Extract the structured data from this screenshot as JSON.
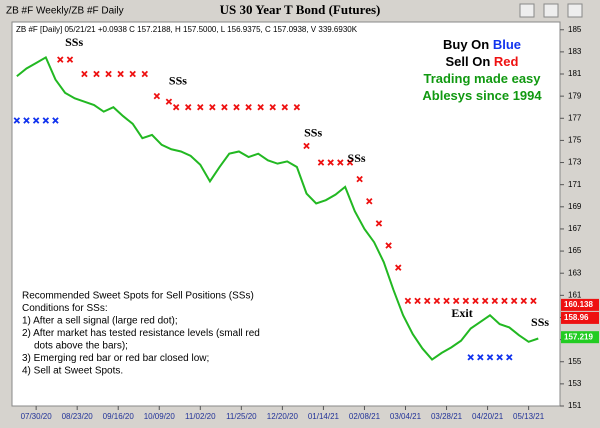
{
  "chart_data": {
    "type": "line",
    "panel_label": "ZB #F Weekly/ZB #F Daily",
    "title": "US 30 Year T Bond (Futures)",
    "info": "ZB #F [Daily] 05/21/21 +0.0938 C 157.2188, H 157.5000, L 156.9375, C 157.0938, V 339.6930K",
    "xlim": [
      -10,
      217
    ],
    "ylim": [
      151,
      185.7
    ],
    "xticks": [
      {
        "value": 0,
        "label": "07/30/20"
      },
      {
        "value": 17,
        "label": "08/23/20"
      },
      {
        "value": 34,
        "label": "09/16/20"
      },
      {
        "value": 51,
        "label": "10/09/20"
      },
      {
        "value": 68,
        "label": "11/02/20"
      },
      {
        "value": 85,
        "label": "11/25/20"
      },
      {
        "value": 102,
        "label": "12/20/20"
      },
      {
        "value": 119,
        "label": "01/14/21"
      },
      {
        "value": 136,
        "label": "02/08/21"
      },
      {
        "value": 153,
        "label": "03/04/21"
      },
      {
        "value": 170,
        "label": "03/28/21"
      },
      {
        "value": 187,
        "label": "04/20/21"
      },
      {
        "value": 204,
        "label": "05/13/21"
      }
    ],
    "yticks": [
      151,
      153,
      155,
      157,
      159,
      161,
      163,
      165,
      167,
      169,
      171,
      173,
      175,
      177,
      179,
      181,
      183,
      185
    ],
    "series": [
      {
        "color": "#22b822",
        "marker": "line",
        "x": [
          -8,
          -4,
          0,
          4,
          8,
          12,
          16,
          20,
          24,
          28,
          32,
          36,
          40,
          44,
          48,
          52,
          56,
          60,
          64,
          68,
          72,
          76,
          80,
          84,
          88,
          92,
          96,
          100,
          104,
          108,
          112,
          116,
          120,
          124,
          128,
          132,
          136,
          140,
          144,
          148,
          152,
          156,
          160,
          164,
          168,
          172,
          176,
          180,
          184,
          188,
          192,
          196,
          200,
          204,
          208
        ],
        "values": [
          180.8,
          181.5,
          182,
          182.5,
          180.5,
          179.3,
          178.8,
          178.5,
          178.2,
          177.6,
          178,
          177.2,
          176.5,
          175.2,
          175.5,
          174.6,
          174.2,
          174,
          173.6,
          172.8,
          171.3,
          172.6,
          173.8,
          174,
          173.5,
          173.8,
          173.2,
          172.9,
          173.1,
          172.6,
          170.2,
          169.3,
          169.6,
          170.1,
          170.8,
          168.6,
          167,
          165.8,
          164,
          161.5,
          159.2,
          157.5,
          156.2,
          155.2,
          155.8,
          156.3,
          156.9,
          158,
          158.6,
          159.2,
          158.4,
          158.1,
          157.4,
          156.8,
          157.1
        ]
      },
      {
        "color": "#ee1111",
        "marker": "x",
        "x": [
          10,
          14,
          20,
          25,
          30,
          35,
          40,
          45,
          50,
          55,
          58,
          63,
          68,
          73,
          78,
          83,
          88,
          93,
          98,
          103,
          108,
          112,
          118,
          122,
          126,
          130,
          134,
          138,
          142,
          146,
          150,
          154,
          158,
          162,
          166,
          170,
          174,
          178,
          182,
          186,
          190,
          194,
          198,
          202,
          206
        ],
        "values": [
          182.3,
          182.3,
          181,
          181,
          181,
          181,
          181,
          181,
          179,
          178.5,
          178,
          178,
          178,
          178,
          178,
          178,
          178,
          178,
          178,
          178,
          178,
          174.5,
          173,
          173,
          173,
          173,
          171.5,
          169.5,
          167.5,
          165.5,
          163.5,
          160.5,
          160.5,
          160.5,
          160.5,
          160.5,
          160.5,
          160.5,
          160.5,
          160.5,
          160.5,
          160.5,
          160.5,
          160.5,
          160.5
        ]
      },
      {
        "color": "#1133ee",
        "marker": "x",
        "x": [
          -8,
          -4,
          0,
          4,
          8,
          180,
          184,
          188,
          192,
          196
        ],
        "values": [
          176.8,
          176.8,
          176.8,
          176.8,
          176.8,
          155.4,
          155.4,
          155.4,
          155.4,
          155.4
        ]
      }
    ],
    "price_labels": [
      {
        "value": 160.138,
        "color": "#ee1111"
      },
      {
        "value": 158.96,
        "color": "#ee1111"
      },
      {
        "value": 157.219,
        "color": "#22cc22"
      }
    ],
    "annotations": [
      {
        "text": "SSs",
        "x": 12,
        "y": 183.8
      },
      {
        "text": "SSs",
        "x": 55,
        "y": 180.3
      },
      {
        "text": "SSs",
        "x": 111,
        "y": 175.6
      },
      {
        "text": "SSs",
        "x": 129,
        "y": 173.3
      },
      {
        "text": "Exit",
        "x": 172,
        "y": 159.3
      },
      {
        "text": "SSs",
        "x": 205,
        "y": 158.5
      }
    ],
    "legend_lines": [
      {
        "parts": [
          "Buy On ",
          "Blue"
        ],
        "colors": [
          "#000000",
          "#1133ee"
        ]
      },
      {
        "parts": [
          "Sell On ",
          "Red"
        ],
        "colors": [
          "#000000",
          "#ee1111"
        ]
      },
      {
        "parts": [
          "Trading made easy"
        ],
        "colors": [
          "#119911"
        ]
      },
      {
        "parts": [
          "Ablesys since 1994"
        ],
        "colors": [
          "#119911"
        ]
      }
    ],
    "notes": [
      "Recommended Sweet Spots for Sell Positions (SSs)",
      "Conditions for SSs:",
      "1) After a sell signal (large red dot);",
      "2) After market has tested resistance levels (small red",
      "dots above the bars);",
      "3) Emerging red bar or red bar closed low;",
      "4) Sell at Sweet Spots."
    ]
  }
}
